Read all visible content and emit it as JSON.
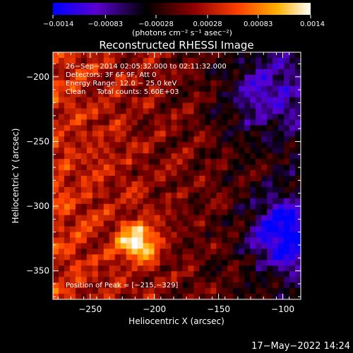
{
  "chart_data": {
    "type": "heatmap",
    "title": "Reconstructed RHESSI Image",
    "xlabel": "Heliocentric X (arcsec)",
    "ylabel": "Heliocentric Y (arcsec)",
    "xlim": [
      -279,
      -86
    ],
    "ylim": [
      -372,
      -181
    ],
    "x_ticks": [
      -250,
      -200,
      -150,
      -100
    ],
    "x_tick_labels": [
      "−250",
      "−200",
      "−150",
      "−100"
    ],
    "y_ticks": [
      -200,
      -250,
      -300,
      -350
    ],
    "y_tick_labels": [
      "−200",
      "−250",
      "−300",
      "−350"
    ],
    "colorbar": {
      "range": [
        -0.0014,
        0.0014
      ],
      "ticks": [
        -0.0014,
        -0.00083,
        -0.00028,
        0.00028,
        0.00083,
        0.0014
      ],
      "tick_labels": [
        "−0.0014",
        "−0.00083",
        "−0.00028",
        "0.00028",
        "0.00083",
        "0.0014"
      ],
      "unit_label": "(photons cm⁻² s⁻¹ asec⁻²)",
      "colormap": [
        "#0000ff",
        "#5a00d0",
        "#000000",
        "#800000",
        "#ff4000",
        "#ffb000",
        "#ffffff"
      ]
    },
    "annotations": [
      "26−Sep−2014 02:05:32.000 to 02:11:32.000",
      "Detectors: 3F 6F 9F, Att 0",
      "Energy Range: 12.0 − 25.0 keV",
      "Clean     Total counts: 5.60E+03"
    ],
    "peak_label": "Position of Peak = [−215,−329]",
    "peak": [
      -215,
      -329
    ],
    "grid": false
  },
  "footer": {
    "timestamp": "17−May−2022 14:24"
  }
}
